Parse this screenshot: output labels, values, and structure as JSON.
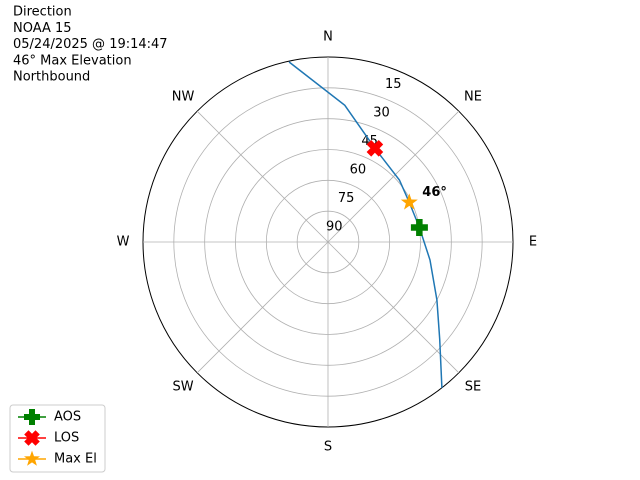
{
  "chart_data": {
    "type": "polar",
    "title_lines": [
      "Direction",
      "NOAA 15",
      "05/24/2025 @ 19:14:47",
      "46° Max Elevation",
      "Northbound"
    ],
    "xlim": [
      0,
      360
    ],
    "xticks": [
      {
        "value": 0,
        "label": "N"
      },
      {
        "value": 45,
        "label": "NE"
      },
      {
        "value": 90,
        "label": "E"
      },
      {
        "value": 135,
        "label": "SE"
      },
      {
        "value": 180,
        "label": "S"
      },
      {
        "value": 225,
        "label": "SW"
      },
      {
        "value": 270,
        "label": "W"
      },
      {
        "value": 315,
        "label": "NW"
      }
    ],
    "ylim": [
      0,
      90
    ],
    "yticks": [
      {
        "value": 15,
        "label": "90"
      },
      {
        "value": 30,
        "label": "75"
      },
      {
        "value": 45,
        "label": "60"
      },
      {
        "value": 60,
        "label": "45"
      },
      {
        "value": 75,
        "label": "30"
      },
      {
        "value": 90,
        "label": "15"
      }
    ],
    "grid": true,
    "track": {
      "color": "#1f77b4",
      "theta": [
        347.8,
        7,
        26.6,
        49,
        64,
        81,
        100,
        118,
        131,
        142
      ],
      "r": [
        89.6,
        67,
        51,
        46,
        44,
        45,
        50.4,
        60,
        72,
        90
      ]
    },
    "series": [
      {
        "name": "AOS",
        "color": "#008000",
        "marker": "plus",
        "theta": [
          81
        ],
        "r": [
          45
        ]
      },
      {
        "name": "LOS",
        "color": "#ff0000",
        "marker": "x",
        "theta": [
          26.6
        ],
        "r": [
          51
        ]
      },
      {
        "name": "Max El",
        "color": "#ffa500",
        "marker": "star",
        "theta": [
          64
        ],
        "r": [
          44
        ]
      }
    ],
    "annotation": "46°",
    "legend": "lower left"
  }
}
